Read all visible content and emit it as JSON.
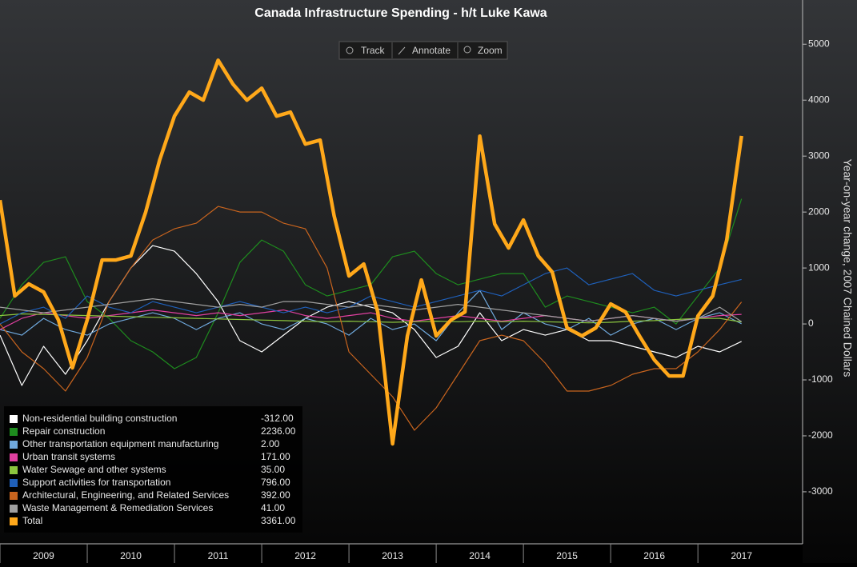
{
  "toolbar": [
    "Track",
    "Annotate",
    "Zoom"
  ],
  "chart_data": {
    "type": "line",
    "title": "Canada Infrastructure Spending - h/t Luke Kawa",
    "y_label": "Year-on-year change, 2007 Chained Dollars",
    "xlim": [
      2009,
      2018.2
    ],
    "xticks": [
      2009,
      2010,
      2011,
      2012,
      2013,
      2014,
      2015,
      2016,
      2017
    ],
    "ylim": [
      -3930,
      5790
    ],
    "yticks": [
      -3000,
      -2000,
      -1000,
      0,
      1000,
      2000,
      3000,
      4000,
      5000
    ],
    "legend": "lower left",
    "series": [
      {
        "name": "Non-residential building construction",
        "color": "#ffffff",
        "value_label": "-312.00",
        "x": [
          2009,
          2009.25,
          2009.5,
          2009.75,
          2010,
          2010.25,
          2010.5,
          2010.75,
          2011,
          2011.25,
          2011.5,
          2011.75,
          2012,
          2012.25,
          2012.5,
          2012.75,
          2013,
          2013.25,
          2013.5,
          2013.75,
          2014,
          2014.25,
          2014.5,
          2014.75,
          2015,
          2015.25,
          2015.5,
          2015.75,
          2016,
          2016.25,
          2016.5,
          2016.75,
          2017,
          2017.25,
          2017.5
        ],
        "values": [
          -200,
          -1100,
          -400,
          -900,
          -300,
          400,
          1000,
          1400,
          1300,
          900,
          400,
          -300,
          -500,
          -200,
          100,
          300,
          400,
          300,
          200,
          -100,
          -600,
          -400,
          200,
          -300,
          -100,
          -200,
          -100,
          -300,
          -300,
          -400,
          -500,
          -600,
          -400,
          -500,
          -312
        ]
      },
      {
        "name": "Repair construction",
        "color": "#1e8c1e",
        "value_label": "2236.00",
        "x": [
          2009,
          2009.25,
          2009.5,
          2009.75,
          2010,
          2010.25,
          2010.5,
          2010.75,
          2011,
          2011.25,
          2011.5,
          2011.75,
          2012,
          2012.25,
          2012.5,
          2012.75,
          2013,
          2013.25,
          2013.5,
          2013.75,
          2014,
          2014.25,
          2014.5,
          2014.75,
          2015,
          2015.25,
          2015.5,
          2015.75,
          2016,
          2016.25,
          2016.5,
          2016.75,
          2017,
          2017.25,
          2017.5
        ],
        "values": [
          100,
          700,
          1100,
          1200,
          400,
          100,
          -300,
          -500,
          -800,
          -600,
          200,
          1100,
          1500,
          1300,
          700,
          500,
          600,
          700,
          1200,
          1300,
          900,
          700,
          800,
          900,
          900,
          300,
          500,
          400,
          300,
          200,
          300,
          0,
          500,
          1000,
          2236
        ]
      },
      {
        "name": "Other transportation equipment manufacturing",
        "color": "#6fa8dc",
        "value_label": "2.00",
        "x": [
          2009,
          2009.25,
          2009.5,
          2009.75,
          2010,
          2010.25,
          2010.5,
          2010.75,
          2011,
          2011.25,
          2011.5,
          2011.75,
          2012,
          2012.25,
          2012.5,
          2012.75,
          2013,
          2013.25,
          2013.5,
          2013.75,
          2014,
          2014.25,
          2014.5,
          2014.75,
          2015,
          2015.25,
          2015.5,
          2015.75,
          2016,
          2016.25,
          2016.5,
          2016.75,
          2017,
          2017.25,
          2017.5
        ],
        "values": [
          -100,
          -200,
          100,
          -100,
          -200,
          0,
          100,
          200,
          100,
          -100,
          100,
          200,
          0,
          -100,
          100,
          0,
          -200,
          100,
          -100,
          0,
          -300,
          200,
          600,
          -100,
          200,
          0,
          -100,
          100,
          -200,
          0,
          100,
          -100,
          100,
          200,
          2
        ]
      },
      {
        "name": "Urban transit systems",
        "color": "#e040a0",
        "value_label": "171.00",
        "x": [
          2009,
          2009.25,
          2009.5,
          2009.75,
          2010,
          2010.25,
          2010.5,
          2010.75,
          2011,
          2011.25,
          2011.5,
          2011.75,
          2012,
          2012.25,
          2012.5,
          2012.75,
          2013,
          2013.25,
          2013.5,
          2013.75,
          2014,
          2014.25,
          2014.5,
          2014.75,
          2015,
          2015.25,
          2015.5,
          2015.75,
          2016,
          2016.25,
          2016.5,
          2016.75,
          2017,
          2017.25,
          2017.5
        ],
        "values": [
          -100,
          100,
          200,
          150,
          100,
          150,
          200,
          250,
          200,
          150,
          200,
          150,
          200,
          250,
          150,
          100,
          150,
          200,
          100,
          50,
          100,
          150,
          100,
          50,
          100,
          150,
          100,
          50,
          100,
          150,
          100,
          50,
          100,
          150,
          171
        ]
      },
      {
        "name": "Water Sewage and other systems",
        "color": "#8cc63f",
        "value_label": "35.00",
        "x": [
          2009,
          2009.25,
          2009.5,
          2009.75,
          2010,
          2010.25,
          2010.5,
          2010.75,
          2011,
          2011.25,
          2011.5,
          2011.75,
          2012,
          2012.25,
          2012.5,
          2012.75,
          2013,
          2013.25,
          2013.5,
          2013.75,
          2014,
          2014.25,
          2014.5,
          2014.75,
          2015,
          2015.25,
          2015.5,
          2015.75,
          2016,
          2016.25,
          2016.5,
          2016.75,
          2017,
          2017.25,
          2017.5
        ],
        "values": [
          150,
          180,
          170,
          160,
          150,
          140,
          130,
          120,
          110,
          100,
          90,
          80,
          70,
          60,
          50,
          40,
          50,
          40,
          30,
          40,
          50,
          40,
          50,
          40,
          50,
          40,
          30,
          20,
          30,
          50,
          60,
          80,
          100,
          100,
          35
        ]
      },
      {
        "name": "Support activities for transportation",
        "color": "#1f5fb8",
        "value_label": "796.00",
        "x": [
          2009,
          2009.25,
          2009.5,
          2009.75,
          2010,
          2010.25,
          2010.5,
          2010.75,
          2011,
          2011.25,
          2011.5,
          2011.75,
          2012,
          2012.25,
          2012.5,
          2012.75,
          2013,
          2013.25,
          2013.5,
          2013.75,
          2014,
          2014.25,
          2014.5,
          2014.75,
          2015,
          2015.25,
          2015.5,
          2015.75,
          2016,
          2016.25,
          2016.5,
          2016.75,
          2017,
          2017.25,
          2017.5
        ],
        "values": [
          0,
          200,
          300,
          100,
          500,
          300,
          200,
          400,
          300,
          200,
          300,
          400,
          300,
          200,
          300,
          200,
          300,
          500,
          400,
          300,
          400,
          500,
          600,
          500,
          700,
          900,
          1000,
          700,
          800,
          900,
          600,
          500,
          600,
          700,
          796
        ]
      },
      {
        "name": "Architectural, Engineering, and Related Services",
        "color": "#c8641e",
        "value_label": "392.00",
        "x": [
          2009,
          2009.25,
          2009.5,
          2009.75,
          2010,
          2010.25,
          2010.5,
          2010.75,
          2011,
          2011.25,
          2011.5,
          2011.75,
          2012,
          2012.25,
          2012.5,
          2012.75,
          2013,
          2013.25,
          2013.5,
          2013.75,
          2014,
          2014.25,
          2014.5,
          2014.75,
          2015,
          2015.25,
          2015.5,
          2015.75,
          2016,
          2016.25,
          2016.5,
          2016.75,
          2017,
          2017.25,
          2017.5
        ],
        "values": [
          0,
          -500,
          -800,
          -1200,
          -600,
          400,
          1000,
          1500,
          1700,
          1800,
          2100,
          2000,
          2000,
          1800,
          1700,
          1000,
          -500,
          -900,
          -1300,
          -1900,
          -1500,
          -900,
          -300,
          -200,
          -300,
          -700,
          -1200,
          -1200,
          -1100,
          -900,
          -800,
          -800,
          -500,
          -100,
          392
        ]
      },
      {
        "name": "Waste Management & Remediation Services",
        "color": "#a0a0a0",
        "value_label": "41.00",
        "x": [
          2009,
          2009.25,
          2009.5,
          2009.75,
          2010,
          2010.25,
          2010.5,
          2010.75,
          2011,
          2011.25,
          2011.5,
          2011.75,
          2012,
          2012.25,
          2012.5,
          2012.75,
          2013,
          2013.25,
          2013.5,
          2013.75,
          2014,
          2014.25,
          2014.5,
          2014.75,
          2015,
          2015.25,
          2015.5,
          2015.75,
          2016,
          2016.25,
          2016.5,
          2016.75,
          2017,
          2017.25,
          2017.5
        ],
        "values": [
          300,
          250,
          200,
          250,
          300,
          350,
          400,
          450,
          400,
          350,
          300,
          350,
          300,
          400,
          400,
          350,
          300,
          350,
          300,
          250,
          300,
          350,
          300,
          250,
          200,
          150,
          100,
          50,
          100,
          150,
          100,
          50,
          100,
          300,
          41
        ]
      },
      {
        "name": "Total",
        "color": "#ffa81a",
        "value_label": "3361.00",
        "x": [
          2009,
          2009.17,
          2009.33,
          2009.5,
          2009.67,
          2009.83,
          2010,
          2010.17,
          2010.33,
          2010.5,
          2010.67,
          2010.83,
          2011,
          2011.17,
          2011.33,
          2011.5,
          2011.67,
          2011.83,
          2012,
          2012.17,
          2012.33,
          2012.5,
          2012.67,
          2012.83,
          2013,
          2013.17,
          2013.33,
          2013.5,
          2013.67,
          2013.83,
          2014,
          2014.17,
          2014.33,
          2014.5,
          2014.67,
          2014.83,
          2015,
          2015.17,
          2015.33,
          2015.5,
          2015.67,
          2015.83,
          2016,
          2016.17,
          2016.33,
          2016.5,
          2016.67,
          2016.83,
          2017,
          2017.17,
          2017.33,
          2017.5
        ],
        "values": [
          2214,
          500,
          714,
          571,
          71,
          -786,
          71,
          1143,
          1143,
          1214,
          2000,
          2929,
          3714,
          4143,
          4000,
          4714,
          4286,
          4000,
          4214,
          3714,
          3786,
          3214,
          3286,
          1929,
          857,
          1071,
          214,
          -2143,
          -214,
          786,
          -214,
          71,
          214,
          3357,
          1786,
          1357,
          1857,
          1214,
          929,
          -71,
          -214,
          -71,
          357,
          214,
          -214,
          -643,
          -929,
          -929,
          143,
          500,
          1500,
          3361
        ]
      }
    ]
  }
}
